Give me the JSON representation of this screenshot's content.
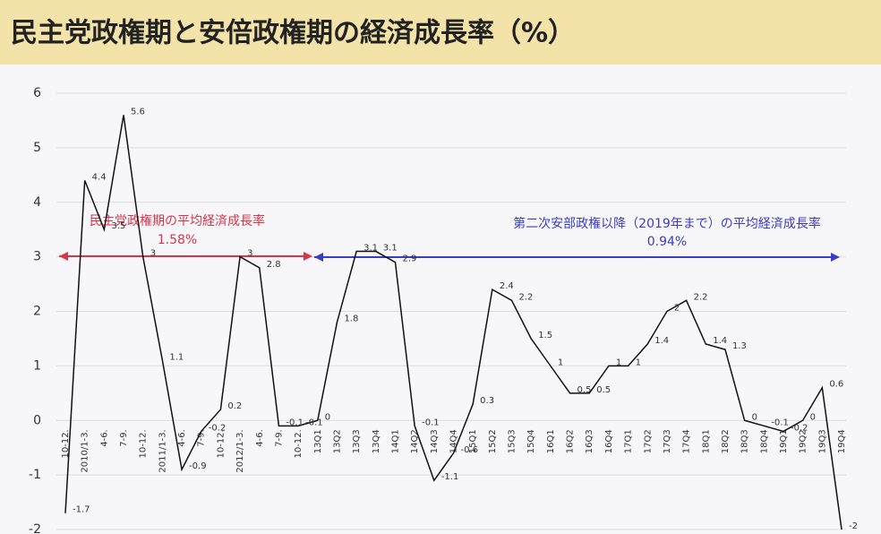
{
  "chart_data": {
    "type": "line",
    "title": "民主党政権期と安倍政権期の経済成長率（%）",
    "categories": [
      "10-12.",
      "2010/1-3.",
      "4-6.",
      "7-9.",
      "10-12.",
      "2011/1-3.",
      "4-6.",
      "7-9.",
      "10-12.",
      "2012/1-3.",
      "4-6.",
      "7-9.",
      "10-12.",
      "13Q1",
      "13Q2",
      "13Q3",
      "13Q4",
      "14Q1",
      "14Q2",
      "14Q3",
      "14Q4",
      "15Q1",
      "15Q2",
      "15Q3",
      "15Q4",
      "16Q1",
      "16Q2",
      "16Q3",
      "16Q4",
      "17Q1",
      "17Q2",
      "17Q3",
      "17Q4",
      "18Q1",
      "18Q2",
      "18Q3",
      "18Q4",
      "19Q1",
      "19Q2",
      "19Q3",
      "19Q4"
    ],
    "values": [
      -1.7,
      4.4,
      3.5,
      5.6,
      3,
      1.1,
      -0.9,
      -0.2,
      0.2,
      3,
      2.8,
      -0.1,
      -0.1,
      0,
      1.8,
      3.1,
      3.1,
      2.9,
      -0.1,
      -1.1,
      -0.6,
      0.3,
      2.4,
      2.2,
      1.5,
      1,
      0.5,
      0.5,
      1,
      1,
      1.4,
      2,
      2.2,
      1.4,
      1.3,
      0,
      -0.1,
      -0.2,
      0,
      0.6,
      -2
    ],
    "color": "#111111",
    "ylim": [
      -2,
      6
    ],
    "yticks": [
      -2,
      -1,
      0,
      1,
      2,
      3,
      4,
      5,
      6
    ],
    "grid": true,
    "annotations": [
      {
        "text": "民主党政権期の平均経済成長率",
        "value": "1.58%",
        "color": "#d8344a"
      },
      {
        "text": "第二次安部政権以降（2019年まで）の平均経済成長率",
        "value": "0.94%",
        "color": "#3b3bc8"
      }
    ]
  }
}
